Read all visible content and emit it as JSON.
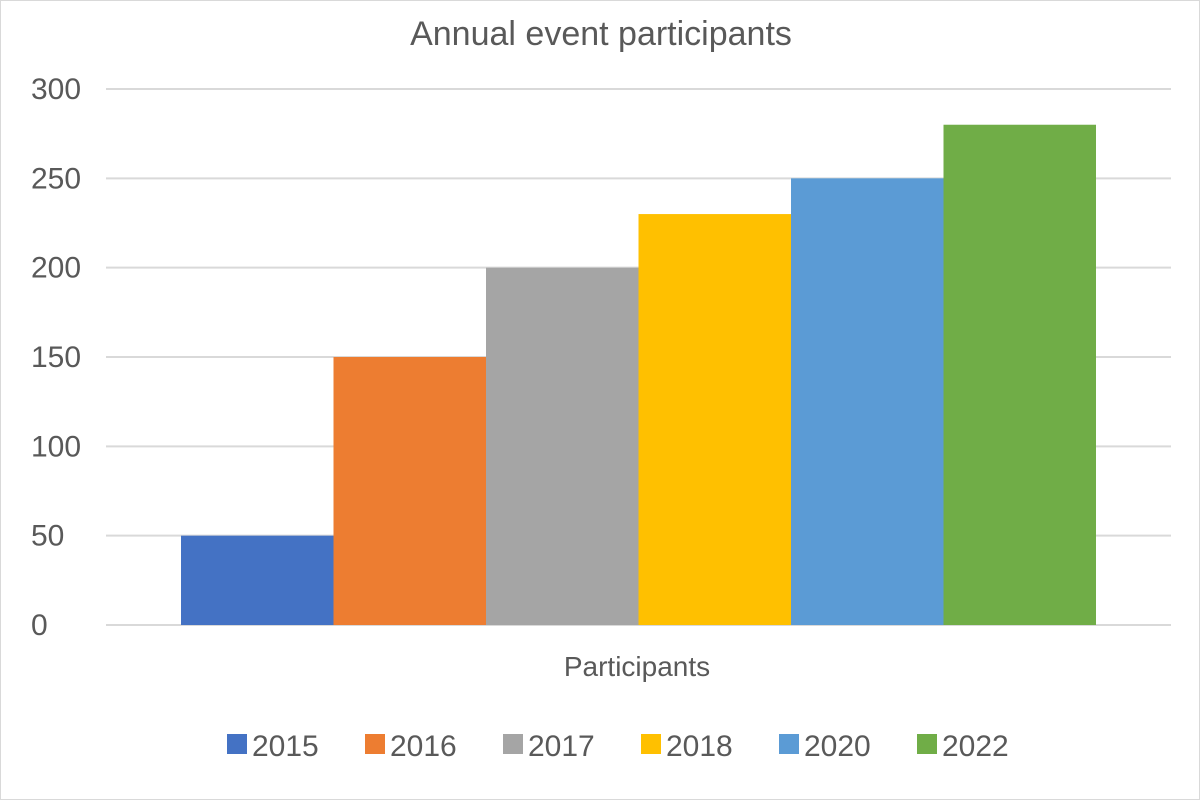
{
  "chart_data": {
    "type": "bar",
    "title": "Annual event participants",
    "categories": [
      "Participants"
    ],
    "series": [
      {
        "name": "2015",
        "values": [
          50
        ],
        "color": "#4472C4"
      },
      {
        "name": "2016",
        "values": [
          150
        ],
        "color": "#ED7D31"
      },
      {
        "name": "2017",
        "values": [
          200
        ],
        "color": "#A5A5A5"
      },
      {
        "name": "2018",
        "values": [
          230
        ],
        "color": "#FFC000"
      },
      {
        "name": "2020",
        "values": [
          250
        ],
        "color": "#5B9BD5"
      },
      {
        "name": "2022",
        "values": [
          280
        ],
        "color": "#70AD47"
      }
    ],
    "xlabel": "",
    "ylabel": "",
    "ylim": [
      0,
      300
    ],
    "yticks": [
      "0",
      "50",
      "100",
      "150",
      "200",
      "250",
      "300"
    ],
    "grid": true,
    "legend": "bottom"
  }
}
